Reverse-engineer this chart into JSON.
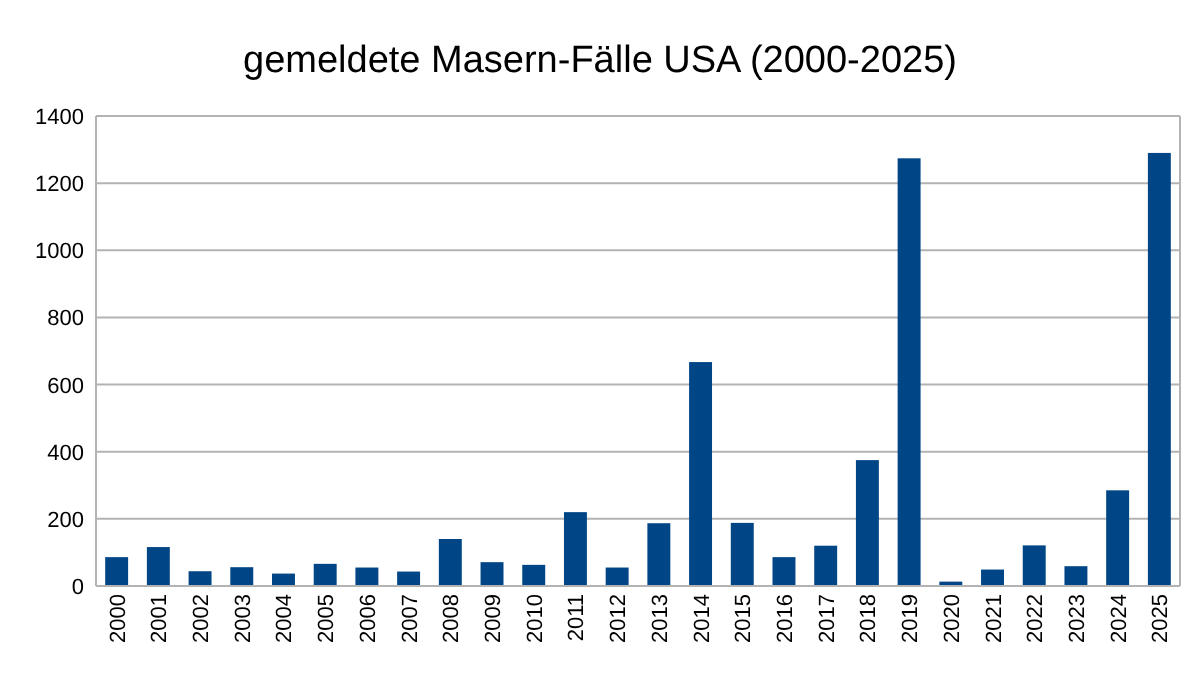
{
  "chart_data": {
    "type": "bar",
    "title": "gemeldete Masern-Fälle USA (2000-2025)",
    "categories": [
      "2000",
      "2001",
      "2002",
      "2003",
      "2004",
      "2005",
      "2006",
      "2007",
      "2008",
      "2009",
      "2010",
      "2011",
      "2012",
      "2013",
      "2014",
      "2015",
      "2016",
      "2017",
      "2018",
      "2019",
      "2020",
      "2021",
      "2022",
      "2023",
      "2024",
      "2025"
    ],
    "values": [
      86,
      116,
      44,
      56,
      37,
      66,
      55,
      43,
      140,
      71,
      63,
      220,
      55,
      187,
      667,
      188,
      86,
      120,
      375,
      1274,
      13,
      49,
      121,
      59,
      285,
      1290
    ],
    "color": "#004586",
    "ylim": [
      0,
      1400
    ],
    "yticks": [
      0,
      200,
      400,
      600,
      800,
      1000,
      1200,
      1400
    ],
    "grid": "y"
  }
}
